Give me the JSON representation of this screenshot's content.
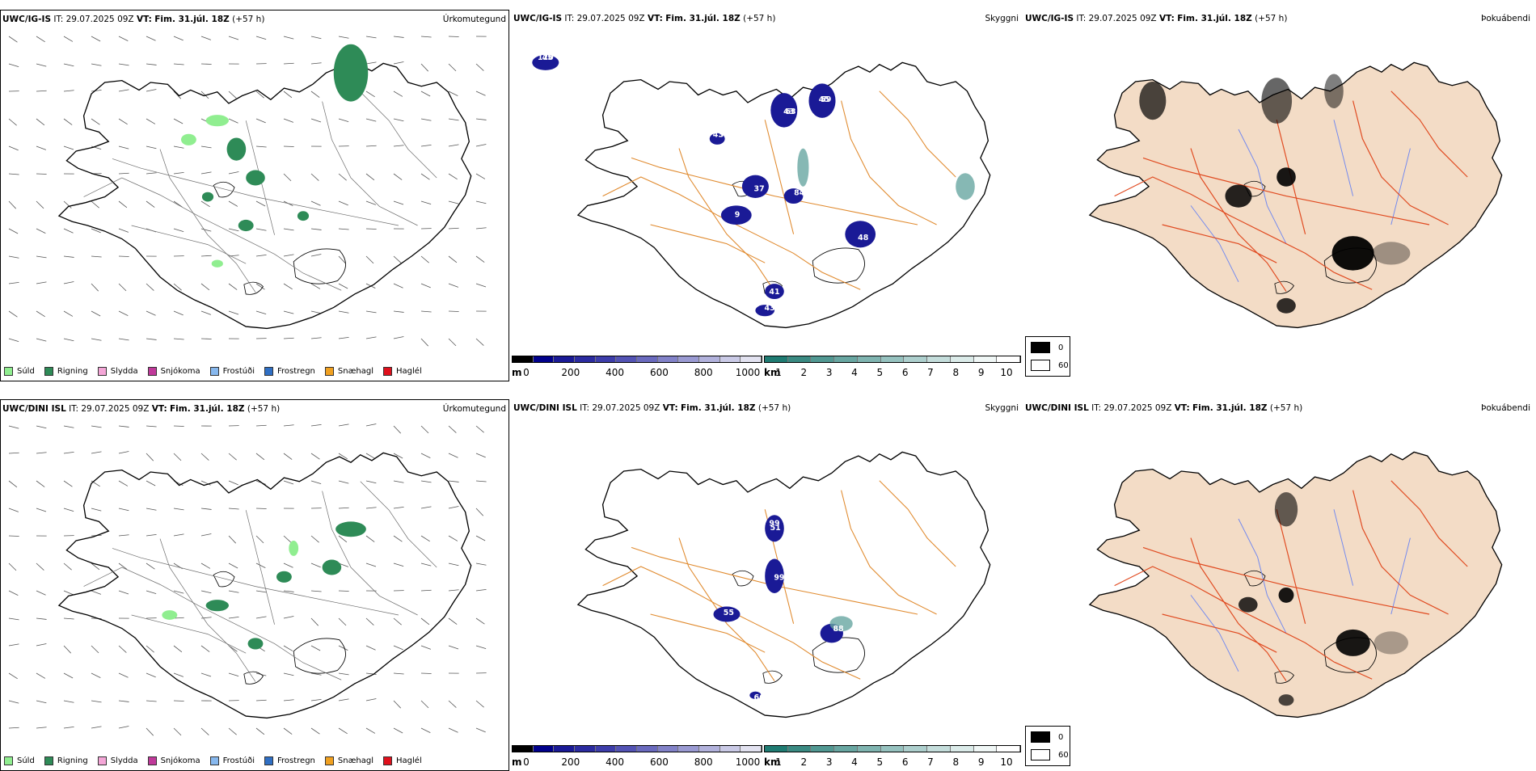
{
  "rows": [
    {
      "model": "UWC/IG-IS",
      "panels": [
        {
          "title": "Úrkomutegund",
          "header": {
            "model": "UWC/IG-IS",
            "it_label": "IT:",
            "it_value": "29.07.2025 09Z",
            "vt_label": "VT:",
            "vt_value": "Fim. 31.júl. 18Z",
            "lead": "(+57 h)"
          }
        },
        {
          "title": "Skyggni",
          "header": {
            "model": "UWC/IG-IS",
            "it_label": "IT:",
            "it_value": "29.07.2025 09Z",
            "vt_label": "VT:",
            "vt_value": "Fim. 31.júl. 18Z",
            "lead": "(+57 h)"
          }
        },
        {
          "title": "Þokuábendi",
          "header": {
            "model": "UWC/IG-IS",
            "it_label": "IT:",
            "it_value": "29.07.2025 09Z",
            "vt_label": "VT:",
            "vt_value": "Fim. 31.júl. 18Z",
            "lead": "(+57 h)"
          }
        }
      ],
      "ceiling_labels": [
        "120",
        "43",
        "45",
        "33",
        "37",
        "9",
        "84",
        "48",
        "41",
        "43",
        "45",
        "63",
        "59",
        "43"
      ]
    },
    {
      "model": "UWC/DINI ISL",
      "panels": [
        {
          "title": "Úrkomutegund",
          "header": {
            "model": "UWC/DINI ISL",
            "it_label": "IT:",
            "it_value": "29.07.2025 09Z",
            "vt_label": "VT:",
            "vt_value": "Fim. 31.júl. 18Z",
            "lead": "(+57 h)"
          }
        },
        {
          "title": "Skyggni",
          "header": {
            "model": "UWC/DINI ISL",
            "it_label": "IT:",
            "it_value": "29.07.2025 09Z",
            "vt_label": "VT:",
            "vt_value": "Fim. 31.júl. 18Z",
            "lead": "(+57 h)"
          }
        },
        {
          "title": "Þokuábendi",
          "header": {
            "model": "UWC/DINI ISL",
            "it_label": "IT:",
            "it_value": "29.07.2025 09Z",
            "vt_label": "VT:",
            "vt_value": "Fim. 31.júl. 18Z",
            "lead": "(+57 h)"
          }
        }
      ],
      "ceiling_labels": [
        "99",
        "99",
        "55",
        "88",
        "66",
        "51"
      ]
    }
  ],
  "precip_legend": [
    {
      "label": "Súld",
      "color": "#90ee90"
    },
    {
      "label": "Rigning",
      "color": "#2e8b57"
    },
    {
      "label": "Slydda",
      "color": "#f4a6d7"
    },
    {
      "label": "Snjókoma",
      "color": "#c0399a"
    },
    {
      "label": "Frostúði",
      "color": "#87b8ee"
    },
    {
      "label": "Frostregn",
      "color": "#2f6fc4"
    },
    {
      "label": "Snæhagl",
      "color": "#f0a020"
    },
    {
      "label": "Haglél",
      "color": "#e0101c"
    }
  ],
  "ceiling_colorbar": {
    "unit": "m",
    "ticks": [
      "0",
      "200",
      "400",
      "600",
      "800",
      "1000"
    ],
    "colors": [
      "#000000",
      "#00008b",
      "#1a1a96",
      "#2b2ba0",
      "#3d3daa",
      "#5353b4",
      "#6a6abe",
      "#8282c8",
      "#9a9ad2",
      "#b2b2dc",
      "#cacae6",
      "#e2e2f0"
    ]
  },
  "visibility_colorbar": {
    "unit": "km",
    "ticks": [
      "1",
      "2",
      "3",
      "4",
      "5",
      "6",
      "7",
      "8",
      "9",
      "10"
    ],
    "colors": [
      "#1f7b72",
      "#3a8a82",
      "#519892",
      "#68a6a1",
      "#7fb4b0",
      "#96c2bf",
      "#adcfcd",
      "#c4dddb",
      "#dbebe9",
      "#f0f7f6",
      "#ffffff"
    ]
  },
  "fog_legend": [
    {
      "label": "0",
      "color": "#000000"
    },
    {
      "label": "60",
      "color": "#ffffff"
    }
  ],
  "colors": {
    "coast": "#000000",
    "roads_grey": "#6d6d6d",
    "roads_orange": "#e08a2e",
    "roads_red": "#e04a20",
    "land_fog": "#f3dcc6",
    "rivers": "#6f87f0"
  }
}
